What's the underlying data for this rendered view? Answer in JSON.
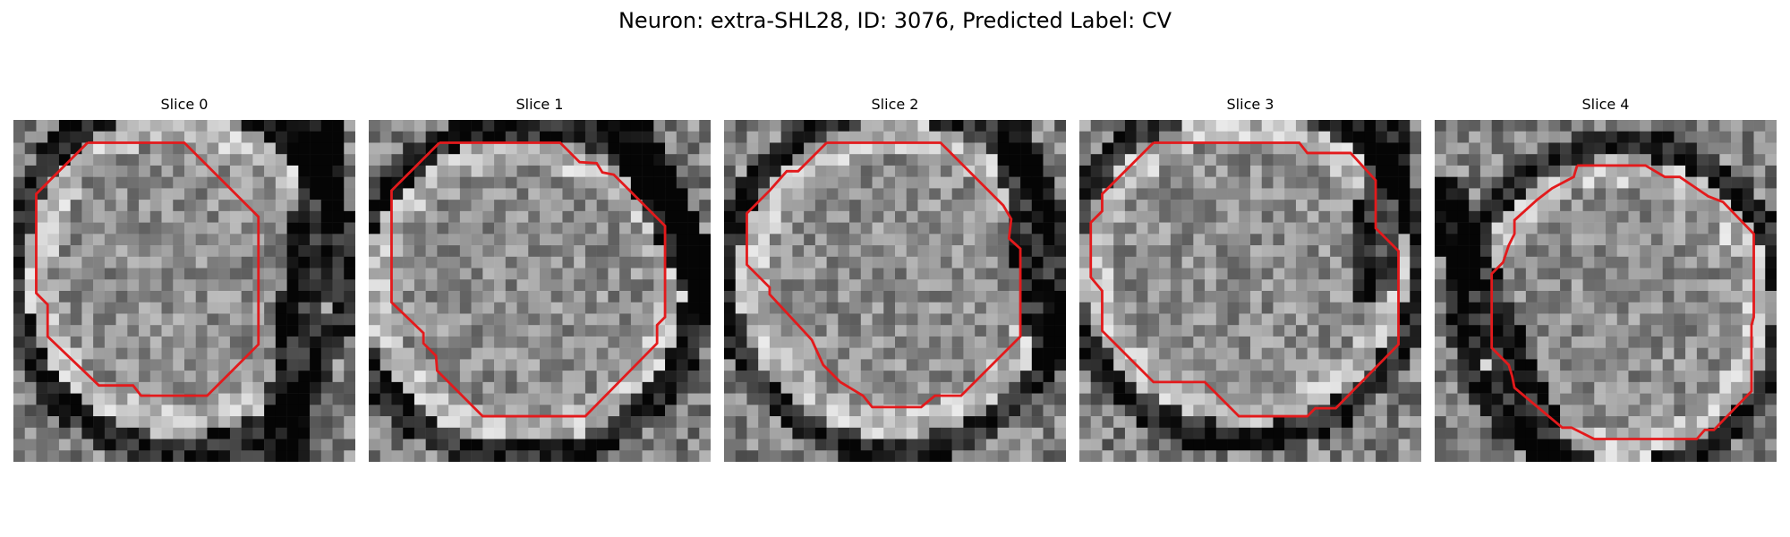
{
  "figure": {
    "title": "Neuron: extra-SHL28, ID: 3076, Predicted Label: CV"
  },
  "contour_color": "#e31a1c",
  "colormap": "grayscale",
  "panels": [
    {
      "title": "Slice 0"
    },
    {
      "title": "Slice 1"
    },
    {
      "title": "Slice 2"
    },
    {
      "title": "Slice 3"
    },
    {
      "title": "Slice 4"
    }
  ]
}
